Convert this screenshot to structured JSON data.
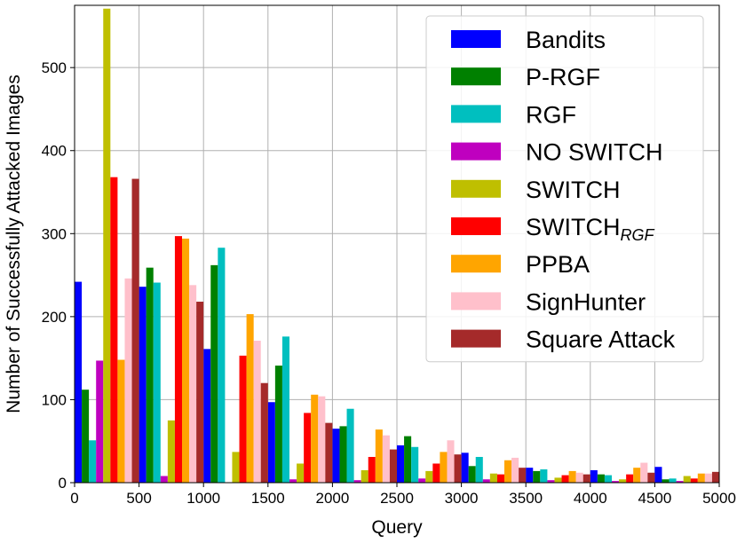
{
  "chart_data": {
    "type": "bar",
    "title": "",
    "xlabel": "Query",
    "ylabel": "Number of Successfully Attacked Images",
    "xlim": [
      0,
      5000
    ],
    "ylim": [
      0,
      575
    ],
    "xticks": [
      0,
      500,
      1000,
      1500,
      2000,
      2500,
      3000,
      3500,
      4000,
      4500,
      5000
    ],
    "yticks": [
      0,
      100,
      200,
      300,
      400,
      500
    ],
    "grid": true,
    "legend_position": "top-right",
    "bin_width": 500,
    "categories": [
      "0-500",
      "500-1000",
      "1000-1500",
      "1500-2000",
      "2000-2500",
      "2500-3000",
      "3000-3500",
      "3500-4000",
      "4000-4500",
      "4500-5000"
    ],
    "series": [
      {
        "name": "Bandits",
        "label_main": "Bandits",
        "label_sub": "",
        "color": "#0000ff",
        "values": [
          242,
          236,
          161,
          97,
          65,
          45,
          36,
          18,
          15,
          19
        ]
      },
      {
        "name": "P-RGF",
        "label_main": "P-RGF",
        "label_sub": "",
        "color": "#008000",
        "values": [
          112,
          259,
          262,
          141,
          68,
          56,
          20,
          14,
          10,
          4
        ]
      },
      {
        "name": "RGF",
        "label_main": "RGF",
        "label_sub": "",
        "color": "#00bfbf",
        "values": [
          51,
          241,
          283,
          176,
          89,
          43,
          31,
          16,
          9,
          5
        ]
      },
      {
        "name": "NO SWITCH",
        "label_main": "NO SWITCH",
        "label_sub": "",
        "color": "#bf00bf",
        "values": [
          147,
          8,
          0,
          4,
          3,
          5,
          4,
          3,
          2,
          2
        ]
      },
      {
        "name": "SWITCH",
        "label_main": "SWITCH",
        "label_sub": "",
        "color": "#bfbf00",
        "values": [
          571,
          75,
          37,
          23,
          15,
          14,
          11,
          6,
          4,
          8
        ]
      },
      {
        "name": "SWITCH_RGF",
        "label_main": "SWITCH",
        "label_sub": "RGF",
        "color": "#ff0000",
        "values": [
          368,
          297,
          153,
          84,
          31,
          23,
          10,
          9,
          10,
          5
        ]
      },
      {
        "name": "PPBA",
        "label_main": "PPBA",
        "label_sub": "",
        "color": "#ffa500",
        "values": [
          148,
          294,
          203,
          106,
          64,
          37,
          27,
          14,
          18,
          11
        ]
      },
      {
        "name": "SignHunter",
        "label_main": "SignHunter",
        "label_sub": "",
        "color": "#ffc0cb",
        "values": [
          246,
          238,
          171,
          104,
          57,
          51,
          30,
          12,
          24,
          11
        ]
      },
      {
        "name": "Square Attack",
        "label_main": "Square Attack",
        "label_sub": "",
        "color": "#a52a2a",
        "values": [
          366,
          218,
          120,
          72,
          40,
          34,
          18,
          10,
          12,
          13
        ]
      }
    ]
  }
}
